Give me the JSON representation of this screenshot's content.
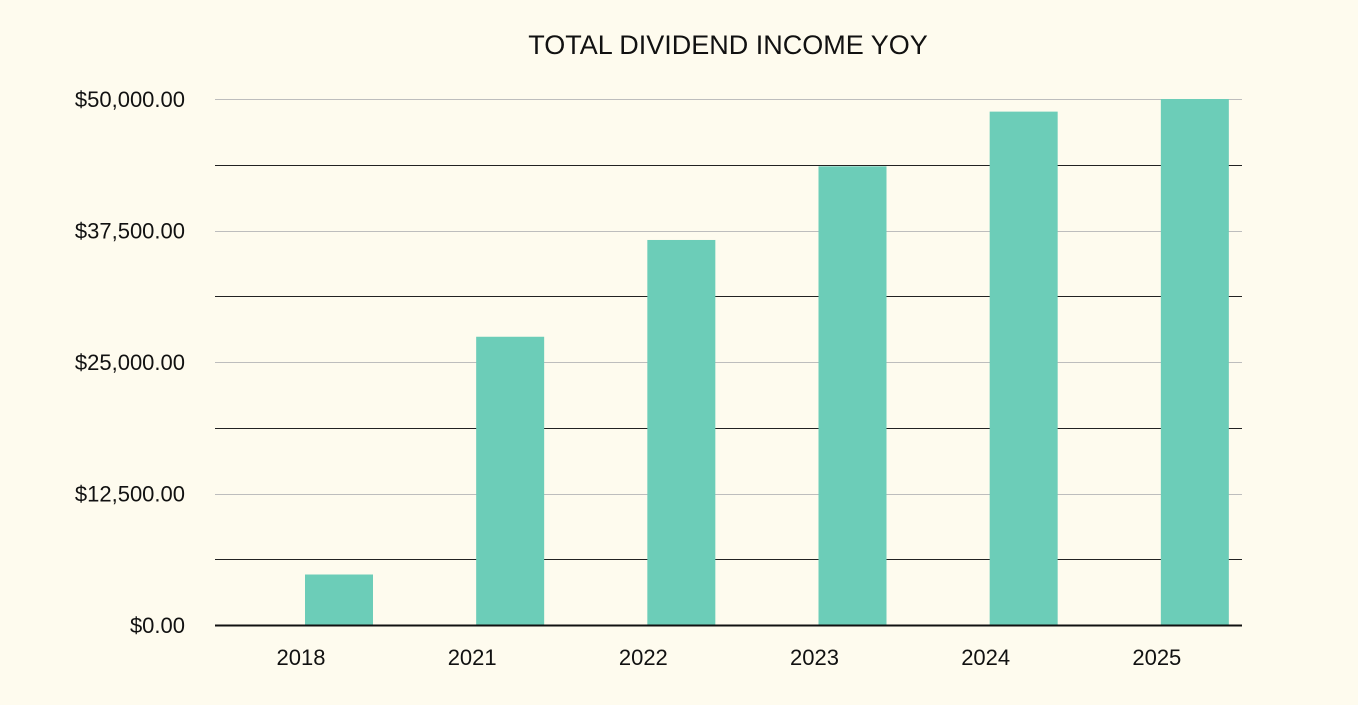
{
  "chart_data": {
    "type": "bar",
    "title": "TOTAL DIVIDEND INCOME YOY",
    "xlabel": "",
    "ylabel": "",
    "categories": [
      "2018",
      "2021",
      "2022",
      "2023",
      "2024",
      "2025"
    ],
    "values": [
      4800,
      27400,
      36600,
      43600,
      48800,
      50000
    ],
    "ylim": [
      0,
      50000
    ],
    "yticks": [
      0,
      12500,
      25000,
      37500,
      50000
    ],
    "ytick_labels": [
      "$0.00",
      "$12,500.00",
      "$25,000.00",
      "$37,500.00",
      "$50,000.00"
    ],
    "minor_gridlines": [
      6250,
      18750,
      31250,
      43750
    ],
    "grid": true,
    "legend": "none",
    "bar_color": "#6ccdb8",
    "background_color": "#fefbee",
    "major_grid_color": "#bdbdbd",
    "minor_grid_color": "#222222",
    "axis_color": "#111111"
  }
}
